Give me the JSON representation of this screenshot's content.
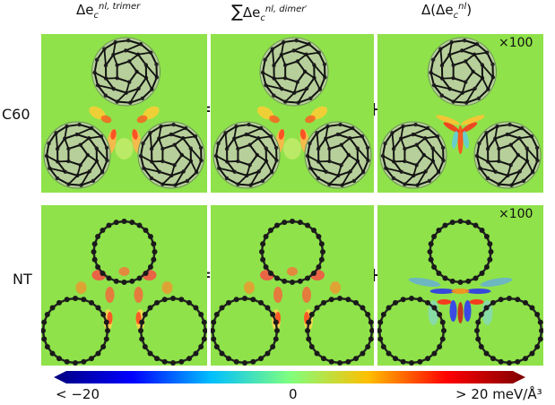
{
  "columns": [
    {
      "base": "Δe",
      "sub": "c",
      "sup": "nl, trimer",
      "prefix": "",
      "suffix": ""
    },
    {
      "base": "Δe",
      "sub": "c",
      "sup": "nl, dimer′",
      "prefix": "∑",
      "suffix": ""
    },
    {
      "base": "Δe",
      "sub": "c",
      "sup": "nl",
      "prefix": "Δ(",
      "suffix": ")"
    }
  ],
  "rows": [
    {
      "label": "C60"
    },
    {
      "label": "NT"
    }
  ],
  "operators": {
    "equals": "=",
    "plus": "+"
  },
  "scale_factor": "×100",
  "colorbar": {
    "min_label": "< −20",
    "mid_label": "0",
    "max_label": "> 20 meV/Å³",
    "colors": [
      "#00007f",
      "#0000ff",
      "#00bfff",
      "#7fff7f",
      "#ffbf00",
      "#ff0000",
      "#7f0000"
    ]
  }
}
